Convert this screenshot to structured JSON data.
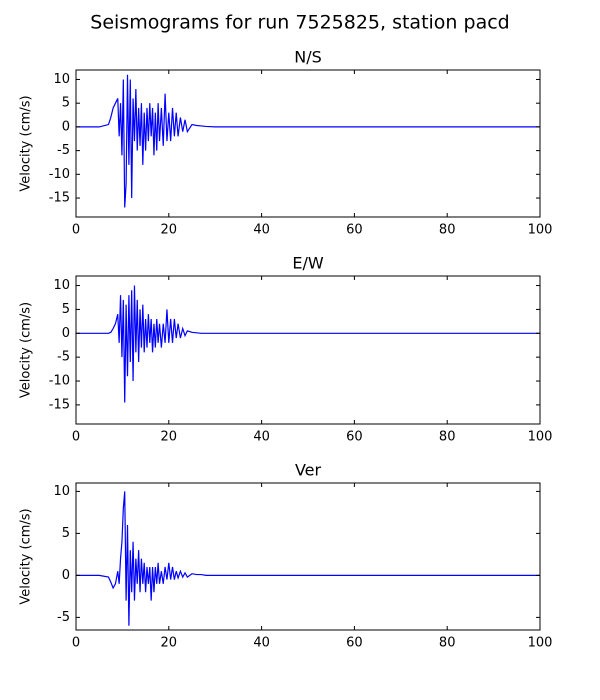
{
  "title": "Seismograms for run 7525825, station pacd",
  "chart_data": [
    {
      "type": "line",
      "title": "N/S",
      "ylabel": "Velocity (cm/s)",
      "x": [
        0,
        5,
        7,
        7.5,
        8,
        8.5,
        9,
        9.3,
        9.6,
        9.9,
        10.2,
        10.5,
        10.8,
        11.1,
        11.4,
        11.7,
        12,
        12.3,
        12.6,
        12.9,
        13.2,
        13.5,
        13.8,
        14.1,
        14.4,
        14.7,
        15,
        15.3,
        15.6,
        15.9,
        16.2,
        16.5,
        16.8,
        17.1,
        17.4,
        17.7,
        18,
        18.4,
        18.8,
        19.2,
        19.6,
        20,
        20.4,
        20.8,
        21.2,
        21.6,
        22,
        22.5,
        23,
        23.5,
        24,
        25,
        26,
        27,
        28,
        30,
        35,
        100
      ],
      "series": [
        {
          "name": "N/S",
          "color": "#0000ff",
          "values": [
            0,
            0,
            0.5,
            2,
            4,
            5,
            6,
            -2,
            5,
            -6,
            10,
            -17,
            -12,
            11,
            -8,
            10,
            -15,
            6,
            -3,
            8,
            -5,
            4,
            -4,
            5,
            -8,
            3,
            -5,
            4,
            -3,
            5,
            -2,
            4,
            -6,
            3,
            -5,
            5,
            -3,
            4,
            -4,
            7,
            -3,
            3,
            -3,
            4,
            -2,
            3,
            -2,
            2,
            -1,
            1.5,
            -1,
            0.5,
            0.3,
            0.2,
            0.1,
            0,
            0,
            0
          ]
        }
      ],
      "xlim": [
        0,
        100
      ],
      "xticks": [
        0,
        20,
        40,
        60,
        80,
        100
      ],
      "ylim": [
        -19,
        12
      ],
      "yticks": [
        -15,
        -10,
        -5,
        0,
        5,
        10
      ]
    },
    {
      "type": "line",
      "title": "E/W",
      "ylabel": "Velocity (cm/s)",
      "x": [
        0,
        5,
        7,
        7.5,
        8,
        8.5,
        9,
        9.3,
        9.6,
        9.9,
        10.2,
        10.5,
        10.8,
        11.1,
        11.4,
        11.7,
        12,
        12.3,
        12.6,
        12.9,
        13.2,
        13.5,
        13.8,
        14.1,
        14.4,
        14.7,
        15,
        15.3,
        15.6,
        15.9,
        16.2,
        16.5,
        16.8,
        17.1,
        17.4,
        17.7,
        18,
        18.4,
        18.8,
        19.2,
        19.6,
        20,
        20.4,
        20.8,
        21.2,
        21.6,
        22,
        22.5,
        23,
        23.5,
        24,
        25,
        26,
        27,
        28,
        30,
        35,
        100
      ],
      "series": [
        {
          "name": "E/W",
          "color": "#0000ff",
          "values": [
            0,
            0,
            0,
            0.2,
            1,
            2,
            4,
            -2,
            8,
            -5,
            7,
            -14.5,
            6,
            -9,
            8,
            -6,
            9,
            -10,
            10,
            -4,
            7,
            -6,
            5,
            -3,
            6,
            -4,
            3,
            -3,
            4,
            -2,
            3,
            -4,
            2,
            -3,
            3,
            -2,
            2,
            -3,
            2,
            -2,
            5,
            -2,
            3,
            -2,
            3,
            -1,
            2,
            -1,
            1,
            -0.5,
            0.5,
            0.2,
            0.1,
            0,
            0,
            0,
            0,
            0
          ]
        }
      ],
      "xlim": [
        0,
        100
      ],
      "xticks": [
        0,
        20,
        40,
        60,
        80,
        100
      ],
      "ylim": [
        -19,
        12
      ],
      "yticks": [
        -15,
        -10,
        -5,
        0,
        5,
        10
      ]
    },
    {
      "type": "line",
      "title": "Ver",
      "ylabel": "Velocity (cm/s)",
      "x": [
        0,
        5,
        7,
        7.5,
        8,
        8.5,
        9,
        9.3,
        9.6,
        9.9,
        10.2,
        10.5,
        10.8,
        11.1,
        11.4,
        11.7,
        12,
        12.3,
        12.6,
        12.9,
        13.2,
        13.5,
        13.8,
        14.1,
        14.4,
        14.7,
        15,
        15.3,
        15.6,
        15.9,
        16.2,
        16.5,
        16.8,
        17.1,
        17.4,
        17.7,
        18,
        18.4,
        18.8,
        19.2,
        19.6,
        20,
        20.4,
        20.8,
        21.2,
        21.6,
        22,
        22.5,
        23,
        23.5,
        24,
        25,
        26,
        27,
        28,
        30,
        35,
        100
      ],
      "series": [
        {
          "name": "Ver",
          "color": "#0000ff",
          "values": [
            0,
            0,
            -0.2,
            -0.8,
            -1.5,
            -1,
            0.5,
            -1,
            2,
            4,
            8,
            10,
            -3,
            6,
            -6,
            3,
            -2,
            4,
            -3,
            2,
            -1,
            3,
            -2,
            2,
            -1,
            1.5,
            -2,
            1,
            -1,
            1,
            -3,
            1,
            -2,
            1,
            -1,
            1.5,
            -1,
            0.5,
            -1,
            1,
            -0.5,
            1.5,
            -0.5,
            1,
            -0.5,
            0.5,
            -0.3,
            0.5,
            -0.2,
            0.3,
            -0.2,
            0.2,
            0.1,
            0.1,
            0,
            0,
            0,
            0
          ]
        }
      ],
      "xlim": [
        0,
        100
      ],
      "xticks": [
        0,
        20,
        40,
        60,
        80,
        100
      ],
      "ylim": [
        -6.5,
        11
      ],
      "yticks": [
        -5,
        0,
        5,
        10
      ]
    }
  ]
}
